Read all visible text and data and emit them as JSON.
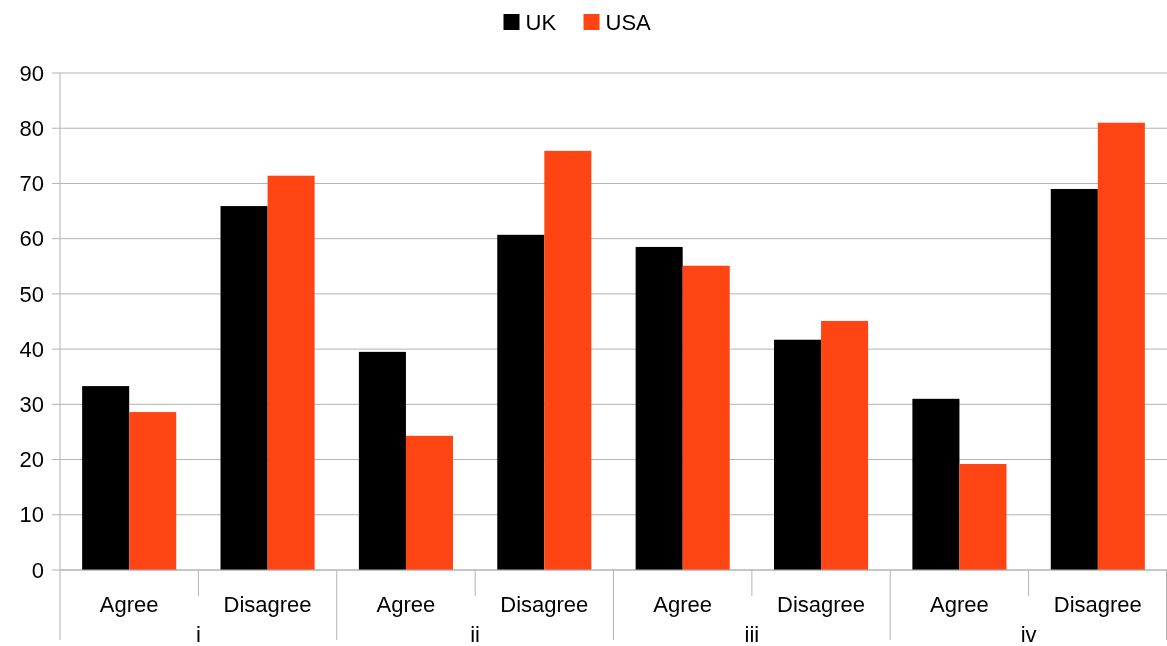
{
  "chart_data": {
    "type": "bar",
    "categories": [
      "Agree",
      "Disagree",
      "Agree",
      "Disagree",
      "Agree",
      "Disagree",
      "Agree",
      "Disagree"
    ],
    "series": [
      {
        "name": "UK",
        "color": "#000000",
        "values": [
          33.3,
          65.9,
          39.5,
          60.7,
          58.5,
          41.7,
          31.0,
          69.0
        ]
      },
      {
        "name": "USA",
        "color": "#ff4513",
        "values": [
          28.6,
          71.4,
          24.3,
          75.9,
          55.1,
          45.1,
          19.2,
          81.0
        ]
      }
    ],
    "annotations": [
      "i",
      "ii",
      "iii",
      "iv"
    ],
    "ylim": [
      0,
      90
    ],
    "yticks": [
      0,
      10,
      20,
      30,
      40,
      50,
      60,
      70,
      80,
      90
    ],
    "grid": "y",
    "legend": "top"
  }
}
